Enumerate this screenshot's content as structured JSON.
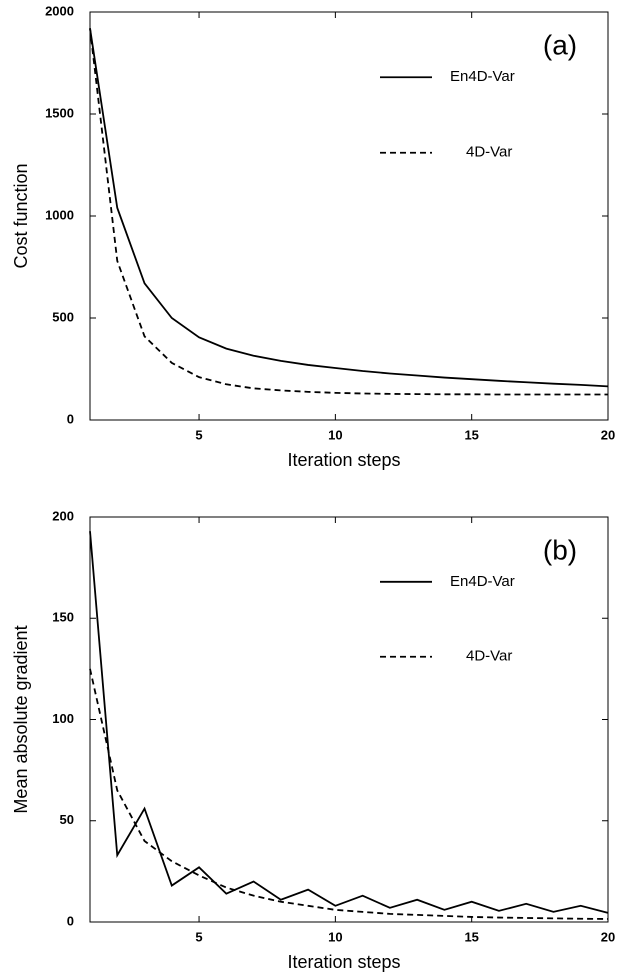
{
  "chart_data": [
    {
      "type": "line",
      "annotation": "(a)",
      "x_label": "Iteration steps",
      "y_label": "Cost function",
      "x": [
        1,
        2,
        3,
        4,
        5,
        6,
        7,
        8,
        9,
        10,
        11,
        12,
        13,
        14,
        15,
        16,
        17,
        18,
        19,
        20
      ],
      "series": [
        {
          "name": "En4D-Var",
          "color": "#000000",
          "dash": "solid",
          "values": [
            1920,
            1040,
            670,
            500,
            405,
            350,
            315,
            290,
            270,
            255,
            240,
            228,
            218,
            208,
            200,
            192,
            185,
            178,
            172,
            165
          ]
        },
        {
          "name": "4D-Var",
          "color": "#000000",
          "dash": "dashed",
          "values": [
            1920,
            780,
            410,
            280,
            210,
            175,
            155,
            145,
            138,
            133,
            130,
            128,
            127,
            126,
            126,
            125,
            125,
            125,
            125,
            125
          ]
        }
      ],
      "xlim": [
        1,
        20
      ],
      "xticks": [
        5,
        10,
        15,
        20
      ],
      "ylim": [
        0,
        2000
      ],
      "yticks": [
        0,
        500,
        1000,
        1500,
        2000
      ]
    },
    {
      "type": "line",
      "annotation": "(b)",
      "x_label": "Iteration steps",
      "y_label": "Mean absolute gradient",
      "x": [
        1,
        2,
        3,
        4,
        5,
        6,
        7,
        8,
        9,
        10,
        11,
        12,
        13,
        14,
        15,
        16,
        17,
        18,
        19,
        20
      ],
      "series": [
        {
          "name": "En4D-Var",
          "color": "#000000",
          "dash": "solid",
          "values": [
            193,
            33,
            56,
            18,
            27,
            14,
            20,
            11,
            16,
            8,
            13,
            7,
            11,
            6,
            10,
            5.5,
            9,
            5,
            8,
            4.5
          ]
        },
        {
          "name": "4D-Var",
          "color": "#000000",
          "dash": "dashed",
          "values": [
            125,
            65,
            40,
            30,
            23,
            17,
            13,
            10,
            8,
            6,
            5,
            4,
            3.5,
            3,
            2.5,
            2.2,
            2,
            1.8,
            1.6,
            1.5
          ]
        }
      ],
      "xlim": [
        1,
        20
      ],
      "xticks": [
        5,
        10,
        15,
        20
      ],
      "ylim": [
        0,
        200
      ],
      "yticks": [
        0,
        50,
        100,
        150,
        200
      ]
    }
  ]
}
